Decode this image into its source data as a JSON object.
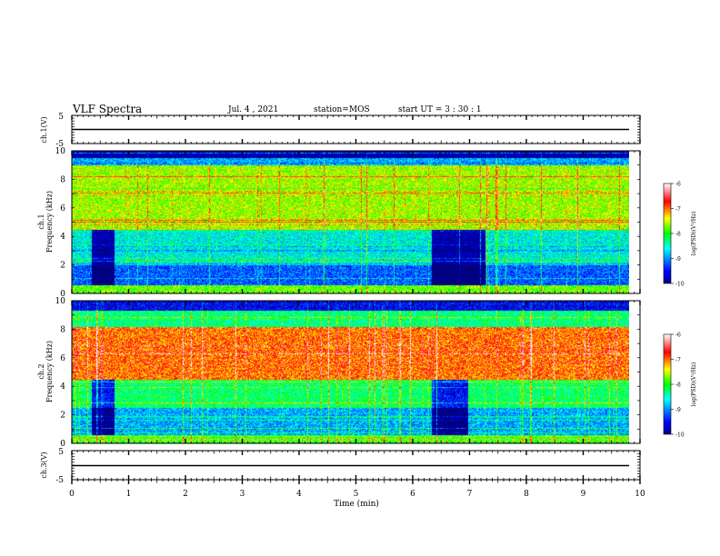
{
  "header": {
    "title": "VLF Spectra",
    "date": "Jul. 4 , 2021",
    "station": "station=MOS",
    "start": "start UT = 3 : 30 : 1"
  },
  "chart_data": {
    "type": "heatmap",
    "xlabel": "Time (min)",
    "xlim": [
      0,
      10
    ],
    "x_ticks": [
      "0",
      "1",
      "2",
      "3",
      "4",
      "5",
      "6",
      "7",
      "8",
      "9",
      "10"
    ],
    "panels": [
      {
        "kind": "waveform",
        "ylabel": "ch.1(V)",
        "ylim": [
          -5,
          5
        ],
        "y_ticks": [
          "5",
          "-5"
        ],
        "level": 0
      },
      {
        "kind": "spectrogram",
        "ylabel_line1": "ch.1",
        "ylabel_line2": "Frequency (kHz)",
        "ylim": [
          0,
          10
        ],
        "y_ticks": [
          "0",
          "2",
          "4",
          "6",
          "8",
          "10"
        ],
        "colorbar": {
          "label": "log(PSD)(V²/Hz)",
          "range": [
            -10,
            -6
          ],
          "ticks": [
            "-6",
            "-7",
            "-8",
            "-9",
            "-10"
          ]
        },
        "data_end_min": 9.85,
        "bands_khz": [
          {
            "from": 0,
            "to": 0.6,
            "level": -7.8
          },
          {
            "from": 0.6,
            "to": 2.0,
            "level": -9.2
          },
          {
            "from": 2.0,
            "to": 4.5,
            "level": -8.6
          },
          {
            "from": 4.5,
            "to": 9.0,
            "level": -7.6
          },
          {
            "from": 9.0,
            "to": 9.5,
            "level": -8.9
          },
          {
            "from": 9.5,
            "to": 10,
            "level": -9.9
          }
        ],
        "quiet_intervals_min": [
          [
            0.35,
            0.75
          ],
          [
            6.35,
            7.3
          ]
        ]
      },
      {
        "kind": "spectrogram",
        "ylabel_line1": "ch.2",
        "ylabel_line2": "Frequency (kHz)",
        "ylim": [
          0,
          10
        ],
        "y_ticks": [
          "0",
          "2",
          "4",
          "6",
          "8",
          "10"
        ],
        "colorbar": {
          "label": "log(PSD)(V²/Hz)",
          "range": [
            -10,
            -6
          ],
          "ticks": [
            "-6",
            "-7",
            "-8",
            "-9",
            "-10"
          ]
        },
        "data_end_min": 9.85,
        "bands_khz": [
          {
            "from": 0,
            "to": 0.6,
            "level": -8.0
          },
          {
            "from": 0.6,
            "to": 2.5,
            "level": -8.9
          },
          {
            "from": 2.5,
            "to": 4.5,
            "level": -8.2
          },
          {
            "from": 4.5,
            "to": 8.2,
            "level": -7.0
          },
          {
            "from": 8.2,
            "to": 9.3,
            "level": -8.3
          },
          {
            "from": 9.3,
            "to": 10,
            "level": -9.6
          }
        ],
        "quiet_intervals_min": [
          [
            0.35,
            0.75
          ],
          [
            6.35,
            7.0
          ]
        ]
      },
      {
        "kind": "waveform",
        "ylabel": "ch.3(V)",
        "ylim": [
          -5,
          5
        ],
        "y_ticks": [
          "5",
          "-5"
        ],
        "level": 0
      }
    ]
  }
}
